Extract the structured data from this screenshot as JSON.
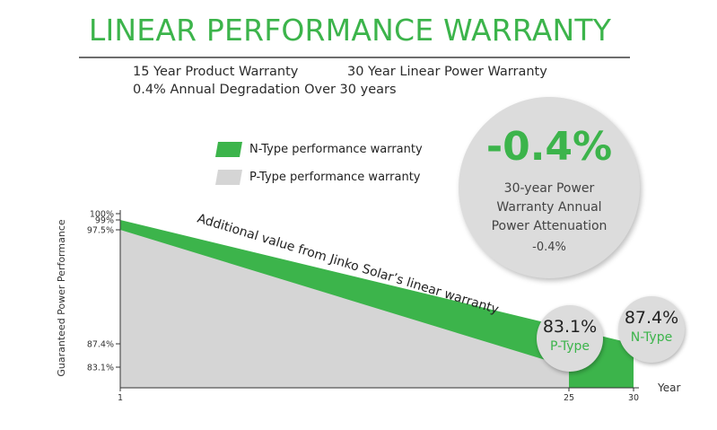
{
  "title": "LINEAR PERFORMANCE WARRANTY",
  "subtitle": {
    "product_warranty": "15 Year Product Warranty",
    "power_warranty": "30 Year Linear Power Warranty",
    "degradation": "0.4% Annual Degradation Over 30 years"
  },
  "legend": [
    {
      "label": "N-Type performance warranty",
      "color": "#3cb44b"
    },
    {
      "label": "P-Type performance warranty",
      "color": "#d5d5d5"
    }
  ],
  "callout": {
    "value": "-0.4%",
    "line1": "30-year Power",
    "line2": "Warranty Annual",
    "line3": "Power Attenuation",
    "line4": "-0.4%"
  },
  "annotation": "Additional value from Jinko Solar’s linear warranty",
  "ptype_badge": {
    "value": "83.1%",
    "label": "P-Type"
  },
  "ntype_badge": {
    "value": "87.4%",
    "label": "N-Type"
  },
  "chart_data": {
    "type": "area",
    "title": "LINEAR PERFORMANCE WARRANTY",
    "xlabel": "Year",
    "ylabel": "Guaranteed Power Performance",
    "x_ticks": [
      "1",
      "25",
      "30"
    ],
    "y_ticks": [
      "100%",
      "99%",
      "97.5%",
      "87.4%",
      "83.1%"
    ],
    "series": [
      {
        "name": "N-Type performance warranty",
        "x": [
          1,
          30
        ],
        "values": [
          99,
          87.4
        ],
        "color": "#3cb44b"
      },
      {
        "name": "P-Type performance warranty",
        "x": [
          1,
          25
        ],
        "values": [
          97.5,
          83.1
        ],
        "color": "#d5d5d5"
      }
    ],
    "xlim": [
      1,
      30
    ],
    "ylim": [
      80,
      100
    ],
    "grid": false
  }
}
